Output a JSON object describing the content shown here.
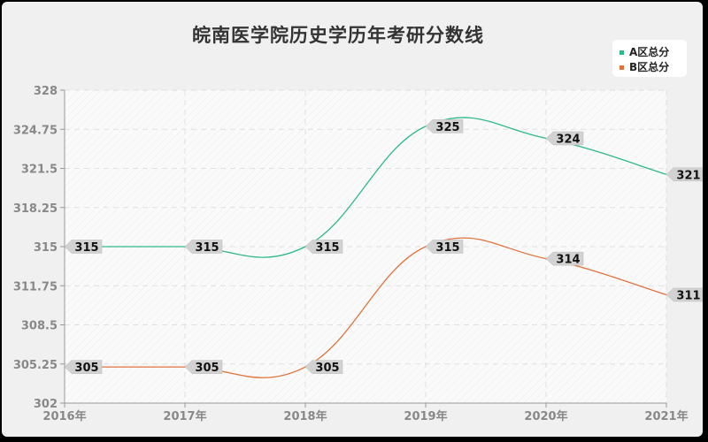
{
  "chart": {
    "title": "皖南医学院历史学历年考研分数线",
    "legend": [
      {
        "label": "A区总分",
        "color": "#2db98c"
      },
      {
        "label": "B区总分",
        "color": "#e2723d"
      }
    ]
  },
  "chart_data": {
    "type": "line",
    "title": "皖南医学院历史学历年考研分数线",
    "xlabel": "",
    "ylabel": "",
    "categories": [
      "2016年",
      "2017年",
      "2018年",
      "2019年",
      "2020年",
      "2021年"
    ],
    "series": [
      {
        "name": "A区总分",
        "color": "#2db98c",
        "values": [
          315,
          315,
          315,
          325,
          324,
          321
        ]
      },
      {
        "name": "B区总分",
        "color": "#e2723d",
        "values": [
          305,
          305,
          305,
          315,
          314,
          311
        ]
      }
    ],
    "yticks": [
      "328",
      "324.75",
      "321.5",
      "318.25",
      "315",
      "311.75",
      "308.5",
      "305.25",
      "302"
    ],
    "ylim": [
      302,
      328
    ],
    "grid": true,
    "legend_position": "top-right",
    "smooth": true
  }
}
